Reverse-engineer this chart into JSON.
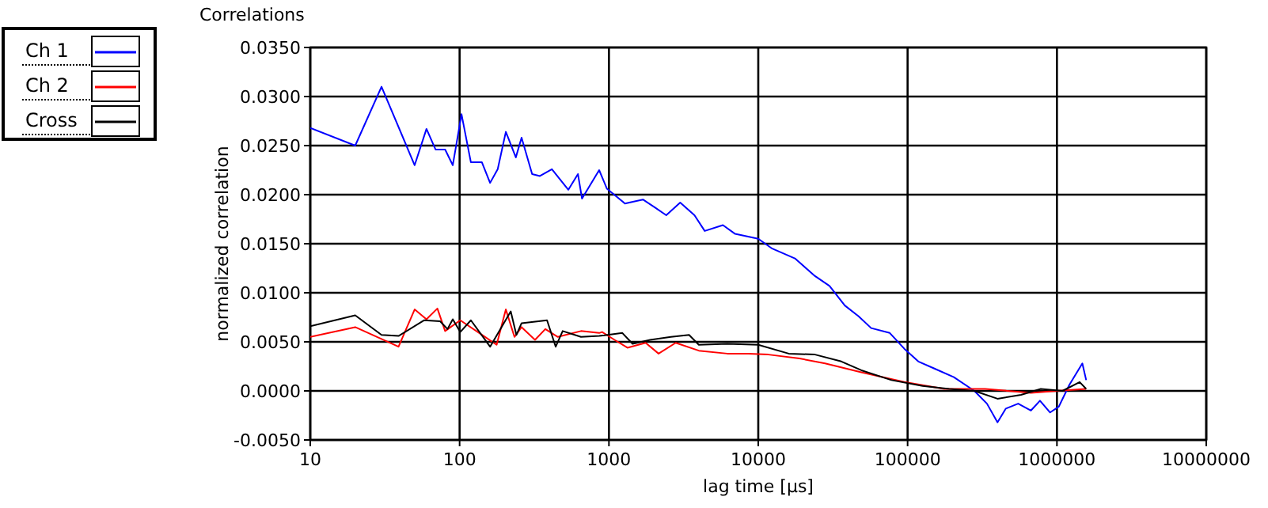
{
  "chart_data": {
    "type": "line",
    "title": "Correlations",
    "xlabel": "lag time [µs]",
    "ylabel": "normalized correlation",
    "log": "x",
    "grid": true,
    "legend": "top left",
    "marker": "none",
    "line_style": "solid",
    "xlim": [
      10,
      10000000
    ],
    "xticks": [
      10,
      100,
      1000,
      10000,
      100000,
      1000000,
      10000000
    ],
    "ylim": [
      -0.005,
      0.035
    ],
    "yticks": [
      {
        "value": -0.005,
        "label": "-0.0050"
      },
      {
        "value": 0,
        "label": "0.0000"
      },
      {
        "value": 0.005,
        "label": "0.0050"
      },
      {
        "value": 0.01,
        "label": "0.0100"
      },
      {
        "value": 0.015,
        "label": "0.0150"
      },
      {
        "value": 0.02,
        "label": "0.0200"
      },
      {
        "value": 0.025,
        "label": "0.0250"
      },
      {
        "value": 0.03,
        "label": "0.0300"
      },
      {
        "value": 0.035,
        "label": "0.0350"
      }
    ],
    "series": [
      {
        "name": "Ch 1",
        "color": "#0000ff",
        "x": [
          10,
          20,
          30,
          50,
          60,
          69,
          80,
          90,
          103,
          119,
          141,
          160,
          180,
          204,
          238,
          260,
          306,
          345,
          415,
          535,
          620,
          660,
          860,
          970,
          1280,
          1690,
          2030,
          2420,
          3000,
          3740,
          4380,
          5800,
          7000,
          10000,
          12400,
          17600,
          24000,
          30000,
          38000,
          47000,
          57000,
          76000,
          95000,
          118000,
          150000,
          204000,
          280000,
          340000,
          400000,
          455000,
          550000,
          670000,
          770000,
          900000,
          1030000,
          1210000,
          1480000,
          1570000
        ],
        "values": [
          0.0268,
          0.025,
          0.031,
          0.023,
          0.0267,
          0.0246,
          0.0246,
          0.023,
          0.0282,
          0.0233,
          0.0233,
          0.0212,
          0.0226,
          0.0264,
          0.0238,
          0.0258,
          0.0221,
          0.0219,
          0.0226,
          0.0205,
          0.0221,
          0.0196,
          0.0225,
          0.0206,
          0.0191,
          0.0195,
          0.0187,
          0.0179,
          0.0192,
          0.0179,
          0.0163,
          0.0169,
          0.016,
          0.0155,
          0.0145,
          0.0135,
          0.0117,
          0.0107,
          0.0087,
          0.0076,
          0.0064,
          0.0059,
          0.0043,
          0.003,
          0.0023,
          0.0014,
          0.0,
          -0.0013,
          -0.0032,
          -0.0018,
          -0.0013,
          -0.002,
          -0.001,
          -0.0022,
          -0.0016,
          0.0006,
          0.0028,
          0.0011
        ]
      },
      {
        "name": "Ch 2",
        "color": "#ff0000",
        "x": [
          10,
          20,
          39,
          50,
          60,
          71,
          80,
          101,
          145,
          177,
          204,
          233,
          260,
          320,
          375,
          455,
          650,
          860,
          900,
          1090,
          1330,
          1760,
          2150,
          2800,
          4000,
          6200,
          8600,
          11700,
          18900,
          28000,
          49000,
          95000,
          176000,
          330000,
          670000,
          1000000,
          1250000,
          1570000
        ],
        "values": [
          0.0055,
          0.0065,
          0.0045,
          0.0083,
          0.0073,
          0.0084,
          0.0061,
          0.0072,
          0.0056,
          0.0047,
          0.0083,
          0.0055,
          0.0065,
          0.0052,
          0.0063,
          0.0055,
          0.0061,
          0.0059,
          0.006,
          0.0052,
          0.0044,
          0.0049,
          0.0038,
          0.0049,
          0.0041,
          0.0038,
          0.0038,
          0.0037,
          0.0033,
          0.0028,
          0.0019,
          0.0009,
          0.0002,
          0.0002,
          -0.0002,
          0.0,
          0.0001,
          0.0002
        ]
      },
      {
        "name": "Cross",
        "color": "#000000",
        "x": [
          10,
          20,
          30,
          39,
          58,
          74,
          83,
          90,
          101,
          119,
          160,
          220,
          240,
          260,
          385,
          440,
          490,
          650,
          860,
          1230,
          1440,
          1890,
          2600,
          3440,
          4000,
          6200,
          10000,
          16000,
          24000,
          36000,
          49000,
          78000,
          126000,
          190000,
          280000,
          400000,
          575000,
          780000,
          1090000,
          1420000,
          1570000
        ],
        "values": [
          0.0066,
          0.0077,
          0.0057,
          0.0056,
          0.0072,
          0.0071,
          0.0063,
          0.0073,
          0.006,
          0.0072,
          0.0045,
          0.0081,
          0.0057,
          0.0069,
          0.0072,
          0.0045,
          0.0061,
          0.0055,
          0.0056,
          0.0059,
          0.0048,
          0.0052,
          0.0055,
          0.0057,
          0.0047,
          0.0048,
          0.0047,
          0.0038,
          0.0037,
          0.003,
          0.0021,
          0.0011,
          0.0005,
          0.0002,
          0.0,
          -0.0008,
          -0.0004,
          0.0002,
          0.0,
          0.0009,
          0.0002
        ]
      }
    ]
  }
}
